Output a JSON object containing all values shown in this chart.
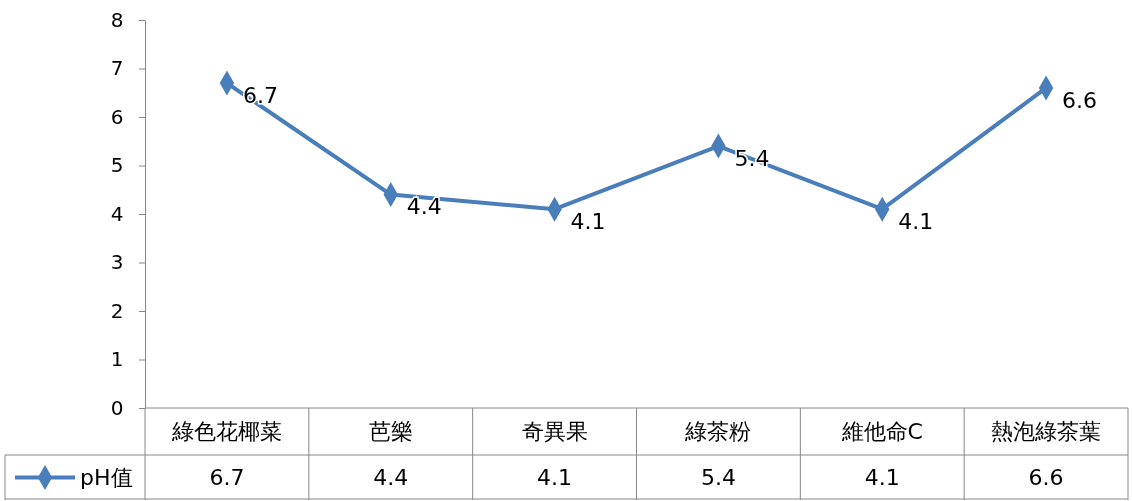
{
  "chart_data": {
    "type": "line",
    "categories": [
      "綠色花椰菜",
      "芭樂",
      "奇異果",
      "綠茶粉",
      "維他命C",
      "熱泡綠茶葉"
    ],
    "series": [
      {
        "name": "pH值",
        "color": "#4a7ebb",
        "values": [
          6.7,
          4.4,
          4.1,
          5.4,
          4.1,
          6.6
        ],
        "value_labels": [
          "6.7",
          "4.4",
          "4.1",
          "5.4",
          "4.1",
          "6.6"
        ]
      }
    ],
    "ylim": [
      0,
      8
    ],
    "yticks": [
      0,
      1,
      2,
      3,
      4,
      5,
      6,
      7,
      8
    ],
    "grid": false,
    "legend": "bottom",
    "marker": "diamond",
    "line_style": "solid",
    "data_labels": true
  }
}
